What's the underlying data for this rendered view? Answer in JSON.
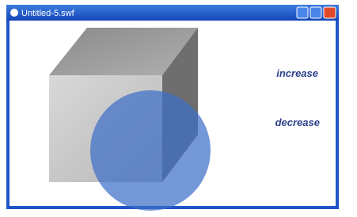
{
  "window": {
    "title": "Untitled-5.swf"
  },
  "labels": [
    "increase",
    "decrease"
  ]
}
